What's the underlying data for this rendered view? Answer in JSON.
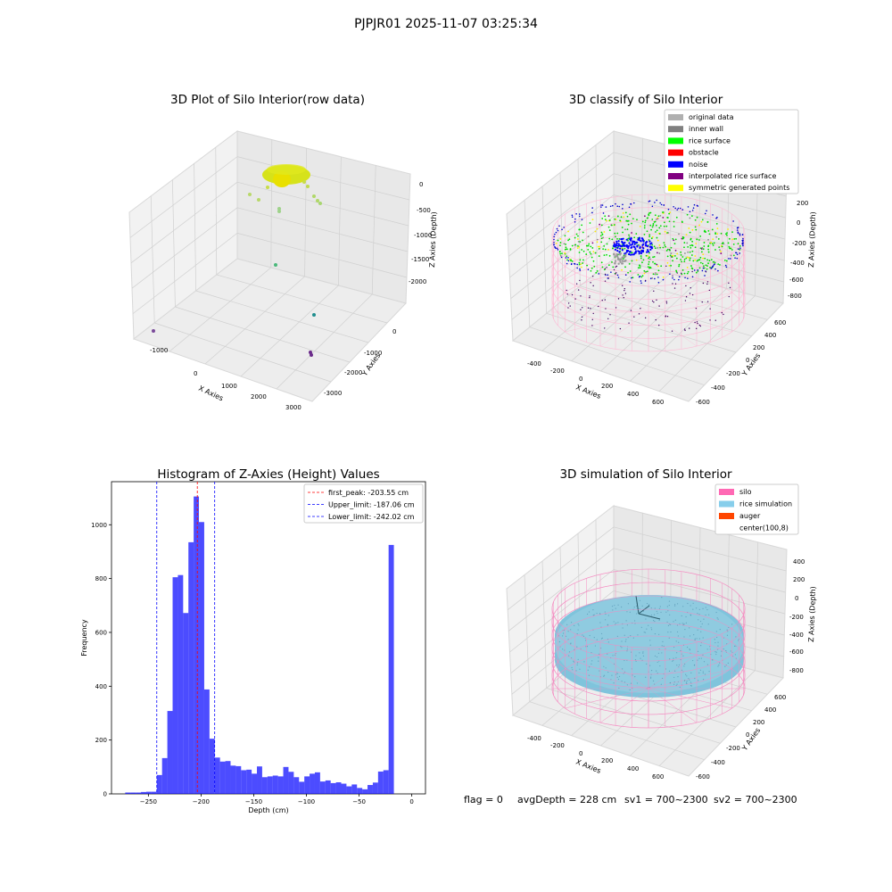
{
  "suptitle": "PJPJR01 2025-11-07 03:25:34",
  "panels": {
    "raw": {
      "title": "3D Plot of Silo Interior(row data)",
      "xlabel": "X Axies",
      "ylabel": "Y Axies",
      "zlabel": "Z Axies (Depth)",
      "xticks": [
        "-1000",
        "0",
        "1000",
        "2000",
        "3000"
      ],
      "yticks": [
        "0",
        "-1000",
        "-2000",
        "-3000"
      ],
      "zticks": [
        "0",
        "-500",
        "-1000",
        "-1500",
        "-2000"
      ]
    },
    "classify": {
      "title": "3D classify of Silo Interior",
      "xlabel": "X Axies",
      "ylabel": "Y Axies",
      "zlabel": "Z Axies (Depth)",
      "xticks": [
        "-400",
        "-200",
        "0",
        "200",
        "400",
        "600"
      ],
      "yticks": [
        "600",
        "400",
        "200",
        "0",
        "-200",
        "-400",
        "-600"
      ],
      "zticks": [
        "200",
        "0",
        "-200",
        "-400",
        "-600",
        "-800"
      ],
      "legend": [
        {
          "label": "original data",
          "color": "#b0b0b0"
        },
        {
          "label": "inner wall",
          "color": "#808080"
        },
        {
          "label": "rice surface",
          "color": "#00ff00"
        },
        {
          "label": "obstacle",
          "color": "#ff0000"
        },
        {
          "label": "noise",
          "color": "#0000ff"
        },
        {
          "label": "interpolated rice surface",
          "color": "#800080"
        },
        {
          "label": "symmetric generated points",
          "color": "#ffff00"
        }
      ]
    },
    "simulation": {
      "title": "3D simulation of Silo Interior",
      "xlabel": "X Axies",
      "ylabel": "Y Axies",
      "zlabel": "Z Axies (Depth)",
      "xticks": [
        "-400",
        "-200",
        "0",
        "200",
        "400",
        "600"
      ],
      "yticks": [
        "600",
        "400",
        "200",
        "0",
        "-200",
        "-400",
        "-600"
      ],
      "zticks": [
        "400",
        "200",
        "0",
        "-200",
        "-400",
        "-600",
        "-800"
      ],
      "legend": [
        {
          "label": "silo",
          "color": "#ff69b4"
        },
        {
          "label": "rice simulation",
          "color": "#87ceeb"
        },
        {
          "label": "auger",
          "color": "#ff4500"
        },
        {
          "label": "center(100,8)",
          "color": ""
        }
      ]
    }
  },
  "chart_data": {
    "type": "bar",
    "title": "Histogram of Z-Axies (Height) Values",
    "xlabel": "Depth (cm)",
    "ylabel": "Frequency",
    "xlim": [
      -285,
      13
    ],
    "ylim": [
      0,
      1160
    ],
    "xticks": [
      -250,
      -200,
      -150,
      -100,
      -50,
      0
    ],
    "yticks": [
      0,
      200,
      400,
      600,
      800,
      1000
    ],
    "bar_color": "#0000ff",
    "bin_width": 5,
    "bins": [
      [
        -272,
        5
      ],
      [
        -267,
        5
      ],
      [
        -262,
        5
      ],
      [
        -257,
        7
      ],
      [
        -252,
        8
      ],
      [
        -247,
        8
      ],
      [
        -242,
        70
      ],
      [
        -237,
        133
      ],
      [
        -232,
        308
      ],
      [
        -227,
        805
      ],
      [
        -222,
        813
      ],
      [
        -217,
        672
      ],
      [
        -212,
        935
      ],
      [
        -207,
        1105
      ],
      [
        -202,
        1010
      ],
      [
        -197,
        388
      ],
      [
        -192,
        205
      ],
      [
        -187,
        135
      ],
      [
        -182,
        120
      ],
      [
        -177,
        122
      ],
      [
        -172,
        105
      ],
      [
        -167,
        103
      ],
      [
        -162,
        88
      ],
      [
        -157,
        90
      ],
      [
        -152,
        75
      ],
      [
        -147,
        102
      ],
      [
        -142,
        62
      ],
      [
        -137,
        65
      ],
      [
        -132,
        68
      ],
      [
        -127,
        65
      ],
      [
        -122,
        100
      ],
      [
        -117,
        82
      ],
      [
        -112,
        62
      ],
      [
        -107,
        45
      ],
      [
        -102,
        65
      ],
      [
        -97,
        75
      ],
      [
        -92,
        80
      ],
      [
        -87,
        46
      ],
      [
        -82,
        50
      ],
      [
        -77,
        40
      ],
      [
        -72,
        43
      ],
      [
        -67,
        38
      ],
      [
        -62,
        28
      ],
      [
        -57,
        35
      ],
      [
        -52,
        22
      ],
      [
        -47,
        17
      ],
      [
        -42,
        33
      ],
      [
        -37,
        42
      ],
      [
        -32,
        83
      ],
      [
        -27,
        88
      ],
      [
        -22,
        925
      ]
    ],
    "lines": [
      {
        "label": "first_peak: -203.55 cm",
        "x": -203.55,
        "color": "#ff0000"
      },
      {
        "label": "Upper_limit: -187.06 cm",
        "x": -187.06,
        "color": "#0000ff"
      },
      {
        "label": "Lower_limit: -242.02 cm",
        "x": -242.02,
        "color": "#0000ff"
      }
    ]
  },
  "footer": {
    "flag": "flag = 0",
    "avg": "avgDepth = 228 cm",
    "sv1": "sv1 = 700~2300",
    "sv2": "sv2 = 700~2300"
  }
}
